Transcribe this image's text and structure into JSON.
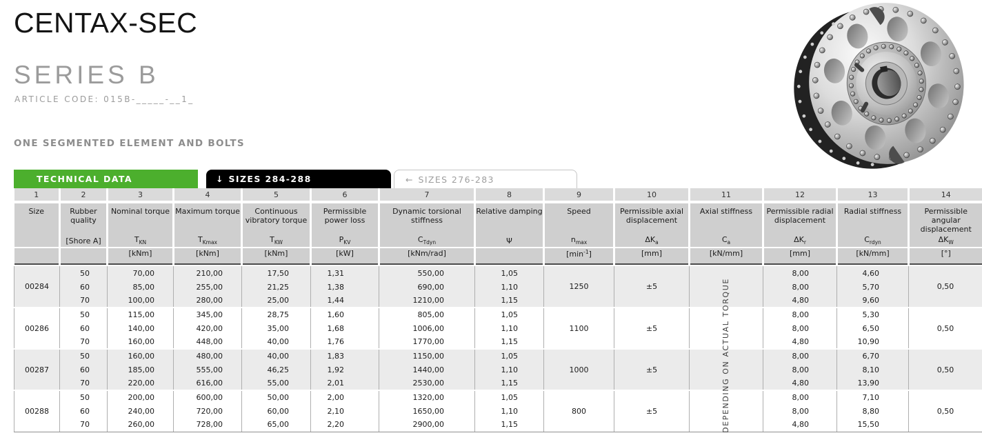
{
  "header": {
    "title": "CENTAX-SEC",
    "series": "SERIES B",
    "article_code": "ARTICLE CODE: 015B-_____-__1_",
    "section_label": "ONE SEGMENTED ELEMENT AND BOLTS"
  },
  "tabs": {
    "technical_data": "TECHNICAL DATA",
    "sizes_current_arrow": "↓",
    "sizes_current": "SIZES 284-288",
    "sizes_other_arrow": "←",
    "sizes_other": "SIZES 276-283"
  },
  "colors": {
    "accent_green": "#4caf2d",
    "tab_black": "#000000",
    "header_gray": "#cfcfcf",
    "row_shade_gray": "#ebebeb"
  },
  "image": {
    "name": "coupling-product-photo"
  },
  "table": {
    "column_numbers": [
      "1",
      "2",
      "3",
      "4",
      "5",
      "6",
      "7",
      "8",
      "9",
      "10",
      "11",
      "12",
      "13",
      "14"
    ],
    "columns": [
      {
        "name": "Size"
      },
      {
        "name": "Rubber quality",
        "sym_base": "[Shore A]"
      },
      {
        "name": "Nominal torque",
        "sym_base": "T",
        "sym_sub": "KN",
        "unit": "[kNm]"
      },
      {
        "name": "Maximum torque",
        "sym_base": "T",
        "sym_sub": "Kmax",
        "unit": "[kNm]"
      },
      {
        "name": "Continuous vibratory torque",
        "sym_base": "T",
        "sym_sub": "KW",
        "unit": "[kNm]"
      },
      {
        "name": "Permissible power loss",
        "sym_base": "P",
        "sym_sub": "KV",
        "unit": "[kW]"
      },
      {
        "name": "Dynamic torsional stiffness",
        "sym_base": "C",
        "sym_sub": "Tdyn",
        "unit": "[kNm/rad]"
      },
      {
        "name": "Relative damping",
        "sym_base": "Ψ"
      },
      {
        "name": "Speed",
        "sym_base": "n",
        "sym_sub": "max",
        "unit_pre": "[min",
        "unit_sup": "-1",
        "unit_post": "]"
      },
      {
        "name": "Permissible axial displacement",
        "sym_base": "ΔK",
        "sym_sub": "a",
        "unit": "[mm]"
      },
      {
        "name": "Axial stiffness",
        "sym_base": "C",
        "sym_sub": "a",
        "unit": "[kN/mm]"
      },
      {
        "name": "Permissible radial displacement",
        "sym_base": "ΔK",
        "sym_sub": "r",
        "unit": "[mm]"
      },
      {
        "name": "Radial stiffness",
        "sym_base": "C",
        "sym_sub": "rdyn",
        "unit": "[kN/mm]"
      },
      {
        "name": "Permissible angular displacement",
        "sym_base": "ΔK",
        "sym_sub": "W",
        "unit": "[°]"
      }
    ],
    "vertical_note": "DEPENDING ON ACTUAL TORQUE",
    "groups": [
      {
        "size": "00284",
        "speed": "1250",
        "axial_displacement": "±5",
        "angular_displacement": "0,50",
        "rows": [
          {
            "shore": "50",
            "tkn": "70,00",
            "tkmax": "210,00",
            "tkw": "17,50",
            "pkv": "1,31",
            "ctdyn": "550,00",
            "psi": "1,05",
            "dkr": "8,00",
            "crdyn": "4,60"
          },
          {
            "shore": "60",
            "tkn": "85,00",
            "tkmax": "255,00",
            "tkw": "21,25",
            "pkv": "1,38",
            "ctdyn": "690,00",
            "psi": "1,10",
            "dkr": "8,00",
            "crdyn": "5,70"
          },
          {
            "shore": "70",
            "tkn": "100,00",
            "tkmax": "280,00",
            "tkw": "25,00",
            "pkv": "1,44",
            "ctdyn": "1210,00",
            "psi": "1,15",
            "dkr": "4,80",
            "crdyn": "9,60"
          }
        ]
      },
      {
        "size": "00286",
        "speed": "1100",
        "axial_displacement": "±5",
        "angular_displacement": "0,50",
        "rows": [
          {
            "shore": "50",
            "tkn": "115,00",
            "tkmax": "345,00",
            "tkw": "28,75",
            "pkv": "1,60",
            "ctdyn": "805,00",
            "psi": "1,05",
            "dkr": "8,00",
            "crdyn": "5,30"
          },
          {
            "shore": "60",
            "tkn": "140,00",
            "tkmax": "420,00",
            "tkw": "35,00",
            "pkv": "1,68",
            "ctdyn": "1006,00",
            "psi": "1,10",
            "dkr": "8,00",
            "crdyn": "6,50"
          },
          {
            "shore": "70",
            "tkn": "160,00",
            "tkmax": "448,00",
            "tkw": "40,00",
            "pkv": "1,76",
            "ctdyn": "1770,00",
            "psi": "1,15",
            "dkr": "4,80",
            "crdyn": "10,90"
          }
        ]
      },
      {
        "size": "00287",
        "speed": "1000",
        "axial_displacement": "±5",
        "angular_displacement": "0,50",
        "rows": [
          {
            "shore": "50",
            "tkn": "160,00",
            "tkmax": "480,00",
            "tkw": "40,00",
            "pkv": "1,83",
            "ctdyn": "1150,00",
            "psi": "1,05",
            "dkr": "8,00",
            "crdyn": "6,70"
          },
          {
            "shore": "60",
            "tkn": "185,00",
            "tkmax": "555,00",
            "tkw": "46,25",
            "pkv": "1,92",
            "ctdyn": "1440,00",
            "psi": "1,10",
            "dkr": "8,00",
            "crdyn": "8,10"
          },
          {
            "shore": "70",
            "tkn": "220,00",
            "tkmax": "616,00",
            "tkw": "55,00",
            "pkv": "2,01",
            "ctdyn": "2530,00",
            "psi": "1,15",
            "dkr": "4,80",
            "crdyn": "13,90"
          }
        ]
      },
      {
        "size": "00288",
        "speed": "800",
        "axial_displacement": "±5",
        "angular_displacement": "0,50",
        "rows": [
          {
            "shore": "50",
            "tkn": "200,00",
            "tkmax": "600,00",
            "tkw": "50,00",
            "pkv": "2,00",
            "ctdyn": "1320,00",
            "psi": "1,05",
            "dkr": "8,00",
            "crdyn": "7,10"
          },
          {
            "shore": "60",
            "tkn": "240,00",
            "tkmax": "720,00",
            "tkw": "60,00",
            "pkv": "2,10",
            "ctdyn": "1650,00",
            "psi": "1,10",
            "dkr": "8,00",
            "crdyn": "8,80"
          },
          {
            "shore": "70",
            "tkn": "260,00",
            "tkmax": "728,00",
            "tkw": "65,00",
            "pkv": "2,20",
            "ctdyn": "2900,00",
            "psi": "1,15",
            "dkr": "4,80",
            "crdyn": "15,50"
          }
        ]
      }
    ]
  }
}
